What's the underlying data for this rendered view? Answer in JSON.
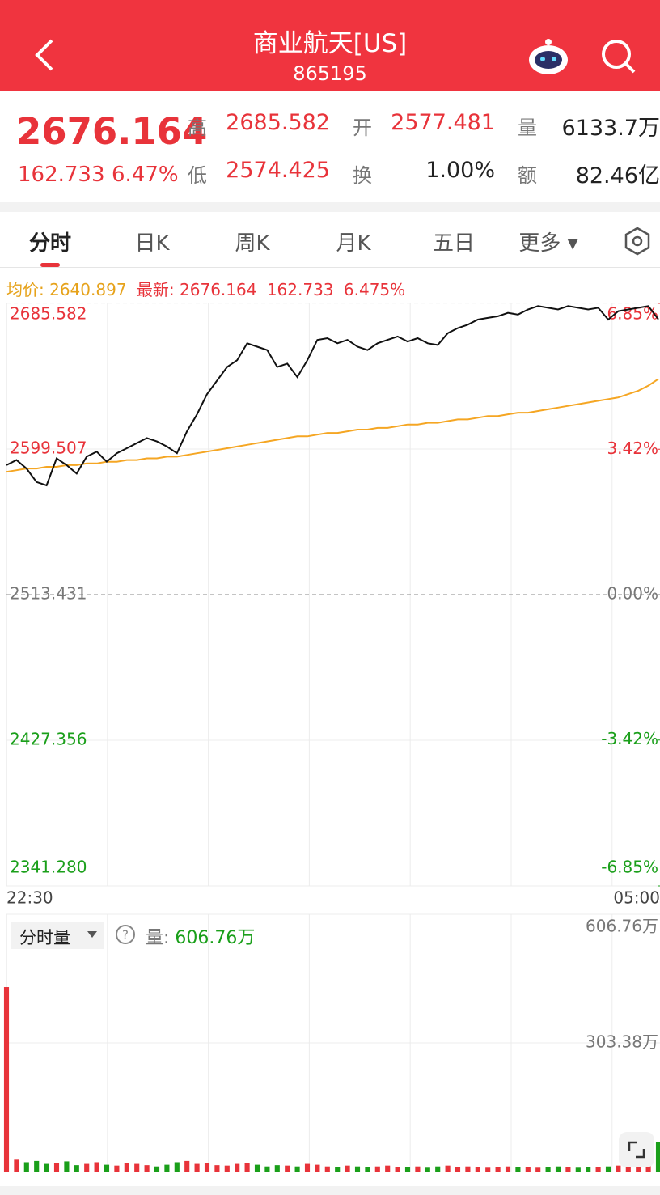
{
  "header": {
    "title": "商业航天[US]",
    "code": "865195"
  },
  "quote": {
    "price": "2676.164",
    "change": "162.733",
    "change_pct": "6.47%",
    "fields": [
      {
        "label": "高",
        "value": "2685.582"
      },
      {
        "label": "开",
        "value": "2577.481"
      },
      {
        "label": "量",
        "value": "6133.7万"
      },
      {
        "label": "低",
        "value": "2574.425"
      },
      {
        "label": "换",
        "value": "1.00%"
      },
      {
        "label": "额",
        "value": "82.46亿"
      }
    ]
  },
  "tabs": [
    "分时",
    "日K",
    "周K",
    "月K",
    "五日",
    "更多"
  ],
  "chart_data": [
    {
      "type": "line",
      "legend": {
        "avg_label": "均价:",
        "avg": "2640.897",
        "latest_label": "最新:",
        "latest": "2676.164",
        "change": "162.733",
        "change_pct": "6.475%"
      },
      "categories": [
        "22:30",
        null,
        null,
        null,
        null,
        null,
        null,
        null,
        null,
        null,
        null,
        null,
        null,
        null,
        null,
        null,
        null,
        null,
        null,
        null,
        null,
        null,
        null,
        null,
        null,
        null,
        null,
        null,
        null,
        null,
        null,
        null,
        null,
        null,
        null,
        null,
        null,
        null,
        null,
        null,
        null,
        null,
        null,
        null,
        null,
        null,
        null,
        null,
        null,
        null,
        null,
        null,
        null,
        null,
        null,
        null,
        null,
        null,
        null,
        null,
        null,
        null,
        null,
        null,
        null,
        "05:00"
      ],
      "series": [
        {
          "color": "#111111",
          "values": [
            2590,
            2593,
            2588,
            2580,
            2578,
            2594,
            2590,
            2585,
            2595,
            2598,
            2592,
            2597,
            2600,
            2603,
            2606,
            2604,
            2601,
            2597,
            2610,
            2620,
            2632,
            2640,
            2648,
            2652,
            2662,
            2660,
            2658,
            2648,
            2650,
            2642,
            2652,
            2664,
            2665,
            2662,
            2664,
            2660,
            2658,
            2662,
            2664,
            2666,
            2663,
            2665,
            2662,
            2661,
            2668,
            2671,
            2673,
            2676,
            2677,
            2678,
            2680,
            2679,
            2682,
            2684,
            2683,
            2682,
            2684,
            2683,
            2682,
            2683,
            2676,
            2681,
            2682,
            2683,
            2684,
            2676.164
          ]
        },
        {
          "color": "#f5a623",
          "values": [
            2586,
            2587,
            2588,
            2588,
            2589,
            2589,
            2590,
            2590,
            2591,
            2591,
            2592,
            2592,
            2593,
            2593,
            2594,
            2594,
            2595,
            2595,
            2596,
            2597,
            2598,
            2599,
            2600,
            2601,
            2602,
            2603,
            2604,
            2605,
            2606,
            2607,
            2607,
            2608,
            2609,
            2609,
            2610,
            2611,
            2611,
            2612,
            2612,
            2613,
            2614,
            2614,
            2615,
            2615,
            2616,
            2617,
            2617,
            2618,
            2619,
            2619,
            2620,
            2621,
            2621,
            2622,
            2623,
            2624,
            2625,
            2626,
            2627,
            2628,
            2629,
            2630,
            2632,
            2634,
            2637,
            2640.897
          ]
        }
      ],
      "ylim": [
        2341.28,
        2685.582
      ],
      "yticks": [
        {
          "value": 2341.28,
          "label": "2341.280"
        },
        2427.356,
        2513.431,
        2599.507,
        2685.582
      ],
      "y2lim": [
        -6.85,
        6.85
      ],
      "y2ticks": [
        {
          "value": -6.85,
          "label": "-6.85%"
        },
        {
          "value": -3.42,
          "label": "-3.42%"
        },
        {
          "value": 0,
          "label": "0.00%"
        },
        {
          "value": 3.42,
          "label": "3.42%"
        },
        {
          "value": 6.85,
          "label": "6.85%"
        }
      ],
      "up_color": "#e8333a",
      "down_color": "#1a9f1a",
      "flat_color": "#777777"
    },
    {
      "type": "bar",
      "title": "分时量",
      "legend_label": "量:",
      "legend_value": "606.76万",
      "values": [
        435,
        28,
        22,
        25,
        18,
        20,
        24,
        15,
        18,
        22,
        16,
        14,
        20,
        18,
        15,
        12,
        16,
        22,
        25,
        18,
        20,
        15,
        14,
        18,
        20,
        16,
        12,
        15,
        14,
        12,
        18,
        16,
        12,
        10,
        14,
        12,
        10,
        12,
        14,
        11,
        10,
        12,
        9,
        12,
        14,
        10,
        12,
        11,
        9,
        10,
        12,
        10,
        11,
        9,
        10,
        12,
        10,
        9,
        11,
        10,
        12,
        14,
        16,
        20,
        30,
        70
      ],
      "ylim": [
        0,
        606.76
      ],
      "yticks": [
        {
          "value": 303.38,
          "label": "303.38万"
        },
        {
          "value": 606.76,
          "label": "606.76万"
        }
      ]
    }
  ]
}
